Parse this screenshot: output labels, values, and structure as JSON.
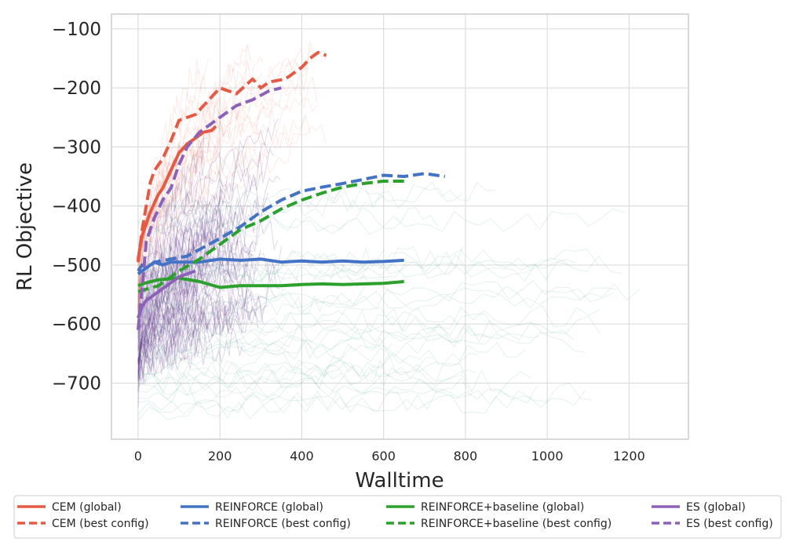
{
  "chart_data": {
    "type": "line",
    "xlabel": "Walltime",
    "ylabel": "RL Objective",
    "xlim": [
      -65,
      1345
    ],
    "ylim": [
      -795,
      -75
    ],
    "x_ticks": [
      0,
      200,
      400,
      600,
      800,
      1000,
      1200
    ],
    "y_ticks": [
      -100,
      -200,
      -300,
      -400,
      -500,
      -600,
      -700
    ],
    "x_tick_labels": [
      "0",
      "200",
      "400",
      "600",
      "800",
      "1000",
      "1200"
    ],
    "y_tick_labels": [
      "−100",
      "−200",
      "−300",
      "−400",
      "−500",
      "−600",
      "−700"
    ],
    "grid": true,
    "legend_position": "bottom",
    "series": [
      {
        "name": "CEM (global)",
        "color": "#e45a44",
        "style": "solid",
        "x": [
          0,
          5,
          10,
          20,
          30,
          40,
          50,
          60,
          70,
          80,
          90,
          100,
          120,
          140,
          160,
          180,
          190
        ],
        "y": [
          -490,
          -470,
          -450,
          -430,
          -410,
          -395,
          -380,
          -370,
          -355,
          -340,
          -325,
          -310,
          -295,
          -285,
          -275,
          -272,
          -265
        ]
      },
      {
        "name": "CEM (best config)",
        "color": "#e45a44",
        "style": "dashed",
        "x": [
          0,
          10,
          20,
          30,
          40,
          50,
          60,
          80,
          100,
          120,
          140,
          160,
          200,
          240,
          280,
          300,
          320,
          360,
          400,
          420,
          440,
          460
        ],
        "y": [
          -495,
          -440,
          -400,
          -360,
          -340,
          -330,
          -320,
          -290,
          -255,
          -250,
          -245,
          -230,
          -200,
          -210,
          -185,
          -200,
          -190,
          -185,
          -165,
          -150,
          -140,
          -145
        ]
      },
      {
        "name": "REINFORCE (global)",
        "color": "#4472c4",
        "style": "solid",
        "x": [
          0,
          10,
          20,
          40,
          60,
          80,
          100,
          150,
          200,
          250,
          300,
          350,
          400,
          450,
          500,
          550,
          600,
          650
        ],
        "y": [
          -510,
          -500,
          -505,
          -495,
          -500,
          -495,
          -495,
          -495,
          -490,
          -492,
          -490,
          -495,
          -493,
          -495,
          -493,
          -495,
          -494,
          -492
        ]
      },
      {
        "name": "REINFORCE (best config)",
        "color": "#4472c4",
        "style": "dashed",
        "x": [
          0,
          20,
          40,
          80,
          120,
          160,
          200,
          250,
          300,
          350,
          400,
          450,
          500,
          550,
          600,
          650,
          700,
          750
        ],
        "y": [
          -515,
          -505,
          -495,
          -490,
          -485,
          -470,
          -455,
          -435,
          -410,
          -390,
          -375,
          -368,
          -362,
          -355,
          -348,
          -350,
          -345,
          -350
        ]
      },
      {
        "name": "REINFORCE+baseline (global)",
        "color": "#2ca02c",
        "style": "solid",
        "x": [
          0,
          20,
          50,
          100,
          150,
          200,
          250,
          300,
          350,
          400,
          450,
          500,
          550,
          600,
          650
        ],
        "y": [
          -535,
          -530,
          -525,
          -522,
          -528,
          -538,
          -535,
          -535,
          -535,
          -533,
          -532,
          -533,
          -532,
          -531,
          -528
        ]
      },
      {
        "name": "REINFORCE+baseline (best config)",
        "color": "#2ca02c",
        "style": "dashed",
        "x": [
          0,
          50,
          100,
          150,
          200,
          250,
          300,
          350,
          400,
          450,
          500,
          550,
          600,
          650
        ],
        "y": [
          -545,
          -535,
          -510,
          -490,
          -465,
          -440,
          -425,
          -405,
          -390,
          -378,
          -368,
          -362,
          -358,
          -358
        ]
      },
      {
        "name": "ES (global)",
        "color": "#8c62b8",
        "style": "solid",
        "x": [
          0,
          10,
          20,
          40,
          60,
          80,
          100,
          120,
          140
        ],
        "y": [
          -590,
          -570,
          -560,
          -550,
          -540,
          -530,
          -520,
          -515,
          -510
        ]
      },
      {
        "name": "ES (best config)",
        "color": "#8c62b8",
        "style": "dashed",
        "x": [
          0,
          10,
          20,
          40,
          60,
          80,
          100,
          120,
          150,
          180,
          200,
          240,
          280,
          320,
          350
        ],
        "y": [
          -610,
          -540,
          -460,
          -420,
          -390,
          -370,
          -330,
          -300,
          -275,
          -260,
          -250,
          -230,
          -220,
          -205,
          -200
        ]
      }
    ],
    "legend_entries": [
      "CEM (global)",
      "CEM (best config)",
      "REINFORCE (global)",
      "REINFORCE (best config)",
      "REINFORCE+baseline (global)",
      "REINFORCE+baseline (best config)",
      "ES (global)",
      "ES (best config)"
    ]
  }
}
